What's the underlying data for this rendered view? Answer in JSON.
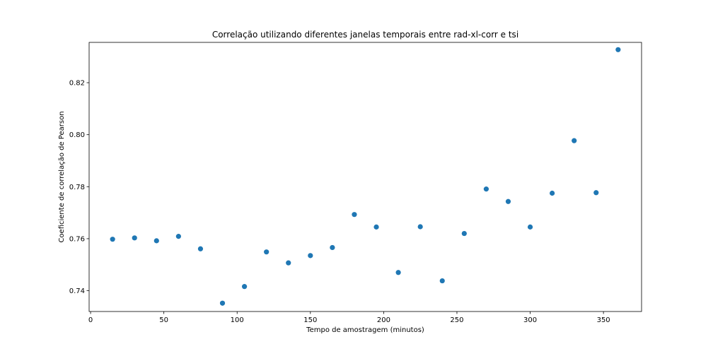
{
  "chart_data": {
    "type": "scatter",
    "title": "Correlação utilizando diferentes janelas temporais entre rad-xl-corr e tsi",
    "xlabel": "Tempo de amostragem (minutos)",
    "ylabel": "Coeficiente de correlação de Pearson",
    "xlim": [
      -1,
      376
    ],
    "ylim": [
      0.732,
      0.8355
    ],
    "xticks": [
      0,
      50,
      100,
      150,
      200,
      250,
      300,
      350
    ],
    "xtick_labels": [
      "0",
      "50",
      "100",
      "150",
      "200",
      "250",
      "300",
      "350"
    ],
    "yticks": [
      0.74,
      0.76,
      0.78,
      0.8,
      0.82
    ],
    "ytick_labels": [
      "0.74",
      "0.76",
      "0.78",
      "0.80",
      "0.82"
    ],
    "grid": false,
    "color": "#1f77b4",
    "series": [
      {
        "x": [
          15,
          30,
          45,
          60,
          75,
          90,
          105,
          120,
          135,
          150,
          165,
          180,
          195,
          210,
          225,
          240,
          255,
          270,
          285,
          300,
          315,
          330,
          345,
          360
        ],
        "y": [
          0.7598,
          0.7603,
          0.7592,
          0.7609,
          0.7561,
          0.7352,
          0.7416,
          0.7549,
          0.7507,
          0.7535,
          0.7566,
          0.7693,
          0.7645,
          0.747,
          0.7646,
          0.7438,
          0.762,
          0.7791,
          0.7743,
          0.7645,
          0.7775,
          0.7977,
          0.7777,
          0.8327
        ]
      }
    ]
  }
}
